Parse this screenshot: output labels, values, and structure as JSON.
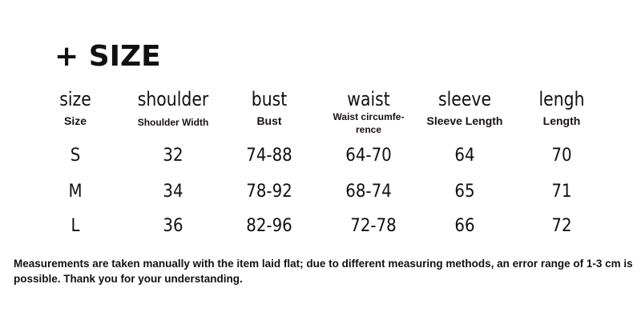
{
  "title": "+ SIZE",
  "columns": [
    {
      "label": "size",
      "sublabel": "Size"
    },
    {
      "label": "shoulder",
      "sublabel": "Shoulder Width"
    },
    {
      "label": "bust",
      "sublabel": "Bust"
    },
    {
      "label": "waist",
      "sublabel": "Waist circumfe-rence"
    },
    {
      "label": "sleeve",
      "sublabel": "Sleeve Length"
    },
    {
      "label": "lengh",
      "sublabel": "Length"
    }
  ],
  "rows": [
    [
      "S",
      "32",
      "74-88",
      "64-70",
      "64",
      "70"
    ],
    [
      "M",
      "34",
      "78-92",
      "68-74",
      "65",
      "71"
    ],
    [
      "L",
      "36",
      "82-96",
      "72-78",
      "66",
      "72"
    ]
  ],
  "note": "Measurements are taken manually with the item laid flat; due to different measuring methods, an error range of 1-3 cm is possible. Thank you for your understanding."
}
